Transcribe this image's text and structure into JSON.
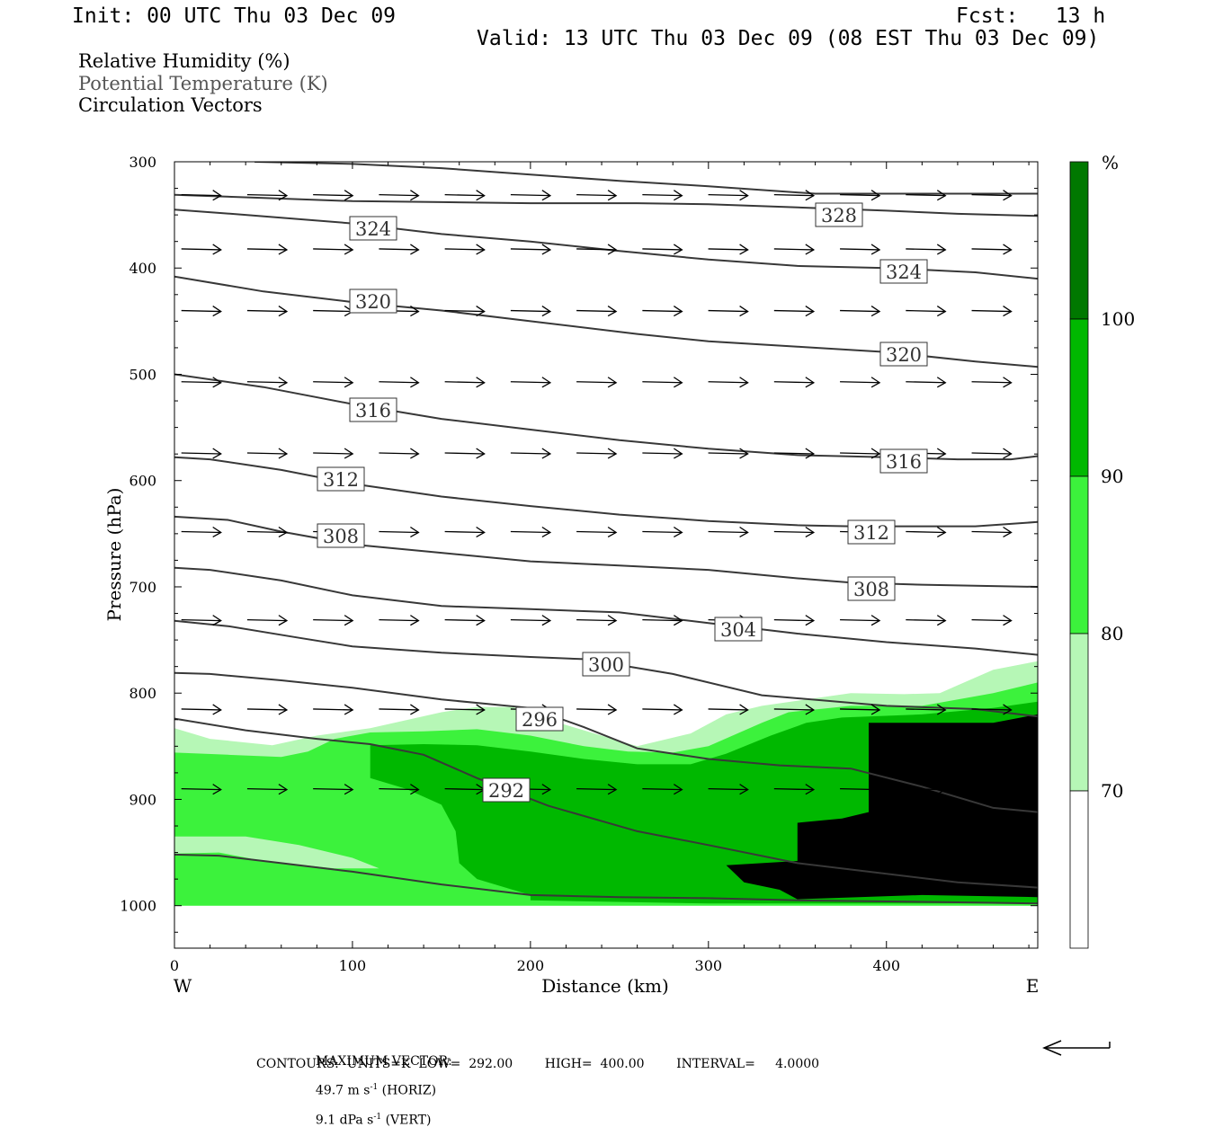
{
  "header": {
    "init": "Init: 00 UTC Thu 03 Dec 09",
    "fcst": "Fcst:   13 h",
    "valid": "Valid: 13 UTC Thu 03 Dec 09 (08 EST Thu 03 Dec 09)"
  },
  "legend": {
    "line1": "Relative Humidity (%)",
    "line2": "Potential Temperature (K)",
    "line3": "Circulation Vectors"
  },
  "footer": {
    "max_vector_label": "MAXIMUM VECTOR:",
    "horiz_value": "49.7 m s",
    "horiz_exp": "-1",
    "horiz_tag": " (HORIZ)",
    "vert_value": "9.1 dPa s",
    "vert_exp": "-1",
    "vert_tag": " (VERT)",
    "contours": "CONTOURS:  UNITS=K  LOW=  292.00        HIGH=  400.00        INTERVAL=     4.0000"
  },
  "colors": {
    "rh_70_80": "#b6f7b6",
    "rh_80_90": "#3cf23c",
    "rh_90_100": "#00b800",
    "rh_100_plus": "#007800",
    "theta_line": "#383838",
    "vector": "#000000"
  },
  "chart_data": {
    "type": "heatmap",
    "title": "",
    "xlabel": "Distance (km)",
    "ylabel": "Pressure (hPa)",
    "xlim": [
      0,
      485
    ],
    "ylim": [
      1040,
      300
    ],
    "y_scale": "linear, inverted",
    "x_ticks": [
      0,
      100,
      200,
      300,
      400
    ],
    "y_ticks": [
      300,
      400,
      500,
      600,
      700,
      800,
      900,
      1000
    ],
    "x_end_labels": {
      "left": "W",
      "right": "E"
    },
    "colorbar": {
      "unit": "%",
      "levels": [
        70,
        80,
        90,
        100
      ],
      "bands": [
        {
          "range": "<70",
          "color": "#ffffff"
        },
        {
          "range": "70-80",
          "color": "#b6f7b6"
        },
        {
          "range": "80-90",
          "color": "#3cf23c"
        },
        {
          "range": "90-100",
          "color": "#00b800"
        },
        {
          "range": ">100",
          "color": "#007800"
        }
      ]
    },
    "rh_regions": [
      {
        "level": "70-80",
        "points": [
          [
            0,
            833
          ],
          [
            20,
            843
          ],
          [
            55,
            849
          ],
          [
            80,
            840
          ],
          [
            110,
            833
          ],
          [
            150,
            818
          ],
          [
            170,
            813
          ],
          [
            190,
            813
          ],
          [
            220,
            830
          ],
          [
            260,
            850
          ],
          [
            290,
            838
          ],
          [
            310,
            820
          ],
          [
            330,
            812
          ],
          [
            380,
            800
          ],
          [
            410,
            801
          ],
          [
            430,
            800
          ],
          [
            460,
            778
          ],
          [
            485,
            770
          ],
          [
            485,
            1000
          ],
          [
            0,
            1000
          ]
        ]
      },
      {
        "level": "80-90",
        "points": [
          [
            0,
            856
          ],
          [
            30,
            858
          ],
          [
            60,
            860
          ],
          [
            75,
            855
          ],
          [
            90,
            843
          ],
          [
            110,
            837
          ],
          [
            140,
            836
          ],
          [
            170,
            834
          ],
          [
            200,
            840
          ],
          [
            230,
            850
          ],
          [
            255,
            855
          ],
          [
            280,
            856
          ],
          [
            300,
            850
          ],
          [
            330,
            828
          ],
          [
            345,
            818
          ],
          [
            380,
            812
          ],
          [
            420,
            812
          ],
          [
            460,
            800
          ],
          [
            485,
            790
          ],
          [
            485,
            1000
          ],
          [
            0,
            1000
          ]
        ]
      },
      {
        "level": "90-100",
        "points": [
          [
            110,
            849
          ],
          [
            140,
            848
          ],
          [
            170,
            849
          ],
          [
            200,
            855
          ],
          [
            230,
            862
          ],
          [
            260,
            867
          ],
          [
            290,
            867
          ],
          [
            310,
            857
          ],
          [
            335,
            840
          ],
          [
            355,
            828
          ],
          [
            375,
            823
          ],
          [
            420,
            820
          ],
          [
            460,
            814
          ],
          [
            485,
            808
          ],
          [
            485,
            998
          ],
          [
            300,
            998
          ],
          [
            200,
            995
          ],
          [
            200,
            990
          ],
          [
            190,
            985
          ],
          [
            170,
            975
          ],
          [
            160,
            960
          ],
          [
            158,
            930
          ],
          [
            150,
            905
          ],
          [
            130,
            890
          ],
          [
            110,
            880
          ]
        ]
      },
      {
        "level": "100+",
        "points": [
          [
            390,
            828
          ],
          [
            460,
            828
          ],
          [
            485,
            820
          ],
          [
            485,
            992
          ],
          [
            420,
            990
          ],
          [
            350,
            994
          ],
          [
            340,
            985
          ],
          [
            320,
            978
          ],
          [
            310,
            962
          ],
          [
            350,
            958
          ],
          [
            350,
            922
          ],
          [
            375,
            918
          ],
          [
            390,
            912
          ],
          [
            390,
            860
          ]
        ]
      },
      {
        "level": "70-80",
        "points": [
          [
            0,
            935
          ],
          [
            40,
            935
          ],
          [
            70,
            943
          ],
          [
            100,
            955
          ],
          [
            115,
            965
          ],
          [
            90,
            965
          ],
          [
            50,
            958
          ],
          [
            25,
            950
          ],
          [
            0,
            951
          ]
        ]
      }
    ],
    "theta_labels": [
      328,
      324,
      324,
      320,
      320,
      316,
      316,
      312,
      312,
      308,
      308,
      304,
      300,
      296,
      292
    ],
    "theta_contours": [
      {
        "value": 328,
        "points": [
          [
            45,
            300
          ],
          [
            100,
            302
          ],
          [
            150,
            306
          ],
          [
            200,
            312
          ],
          [
            250,
            318
          ],
          [
            300,
            323
          ],
          [
            360,
            330
          ],
          [
            420,
            330
          ],
          [
            485,
            330
          ]
        ]
      },
      {
        "value": 328,
        "points": [
          [
            0,
            331
          ],
          [
            50,
            334
          ],
          [
            100,
            337
          ],
          [
            150,
            338
          ],
          [
            200,
            339
          ],
          [
            260,
            339
          ],
          [
            300,
            340
          ],
          [
            350,
            343
          ],
          [
            400,
            346
          ],
          [
            440,
            349
          ],
          [
            485,
            351
          ]
        ]
      },
      {
        "value": 324,
        "points": [
          [
            0,
            345
          ],
          [
            40,
            350
          ],
          [
            100,
            358
          ],
          [
            150,
            368
          ],
          [
            200,
            375
          ],
          [
            250,
            384
          ],
          [
            300,
            392
          ],
          [
            350,
            398
          ],
          [
            400,
            400
          ],
          [
            450,
            404
          ],
          [
            485,
            410
          ]
        ]
      },
      {
        "value": 320,
        "points": [
          [
            0,
            408
          ],
          [
            50,
            422
          ],
          [
            100,
            432
          ],
          [
            150,
            440
          ],
          [
            200,
            450
          ],
          [
            260,
            462
          ],
          [
            300,
            469
          ],
          [
            350,
            474
          ],
          [
            400,
            479
          ],
          [
            450,
            488
          ],
          [
            485,
            493
          ]
        ]
      },
      {
        "value": 316,
        "points": [
          [
            0,
            500
          ],
          [
            50,
            512
          ],
          [
            100,
            528
          ],
          [
            150,
            542
          ],
          [
            200,
            552
          ],
          [
            250,
            562
          ],
          [
            300,
            570
          ],
          [
            350,
            576
          ],
          [
            400,
            578
          ],
          [
            440,
            580
          ],
          [
            470,
            580
          ],
          [
            485,
            577
          ]
        ]
      },
      {
        "value": 312,
        "points": [
          [
            0,
            578
          ],
          [
            20,
            580
          ],
          [
            60,
            590
          ],
          [
            100,
            603
          ],
          [
            150,
            615
          ],
          [
            200,
            624
          ],
          [
            250,
            632
          ],
          [
            300,
            638
          ],
          [
            350,
            642
          ],
          [
            380,
            643
          ],
          [
            450,
            643
          ],
          [
            485,
            639
          ]
        ]
      },
      {
        "value": 308,
        "points": [
          [
            0,
            634
          ],
          [
            30,
            637
          ],
          [
            60,
            648
          ],
          [
            100,
            660
          ],
          [
            150,
            668
          ],
          [
            200,
            676
          ],
          [
            250,
            680
          ],
          [
            300,
            684
          ],
          [
            350,
            692
          ],
          [
            380,
            696
          ],
          [
            420,
            698
          ],
          [
            485,
            700
          ]
        ]
      },
      {
        "value": 304,
        "points": [
          [
            0,
            682
          ],
          [
            20,
            684
          ],
          [
            60,
            694
          ],
          [
            100,
            708
          ],
          [
            150,
            718
          ],
          [
            200,
            721
          ],
          [
            250,
            724
          ],
          [
            300,
            734
          ],
          [
            350,
            744
          ],
          [
            400,
            752
          ],
          [
            450,
            758
          ],
          [
            485,
            764
          ]
        ]
      },
      {
        "value": 300,
        "points": [
          [
            0,
            732
          ],
          [
            30,
            737
          ],
          [
            70,
            748
          ],
          [
            100,
            756
          ],
          [
            150,
            762
          ],
          [
            200,
            766
          ],
          [
            230,
            768
          ],
          [
            280,
            782
          ],
          [
            330,
            802
          ],
          [
            400,
            812
          ],
          [
            450,
            815
          ],
          [
            485,
            822
          ]
        ]
      },
      {
        "value": 296,
        "points": [
          [
            0,
            781
          ],
          [
            20,
            782
          ],
          [
            60,
            788
          ],
          [
            100,
            795
          ],
          [
            150,
            806
          ],
          [
            200,
            814
          ],
          [
            230,
            832
          ],
          [
            260,
            852
          ],
          [
            300,
            862
          ],
          [
            340,
            868
          ],
          [
            380,
            871
          ],
          [
            420,
            888
          ],
          [
            460,
            908
          ],
          [
            485,
            912
          ]
        ]
      },
      {
        "value": 292,
        "points": [
          [
            0,
            824
          ],
          [
            40,
            835
          ],
          [
            80,
            843
          ],
          [
            110,
            848
          ],
          [
            140,
            858
          ],
          [
            170,
            880
          ],
          [
            210,
            906
          ],
          [
            260,
            930
          ],
          [
            300,
            943
          ],
          [
            350,
            960
          ],
          [
            400,
            970
          ],
          [
            440,
            978
          ],
          [
            485,
            983
          ]
        ]
      },
      {
        "value": 292,
        "points": [
          [
            0,
            952
          ],
          [
            25,
            953
          ],
          [
            60,
            960
          ],
          [
            100,
            968
          ],
          [
            150,
            980
          ],
          [
            200,
            990
          ],
          [
            250,
            992
          ],
          [
            300,
            993
          ],
          [
            350,
            995
          ],
          [
            400,
            996
          ],
          [
            450,
            997
          ],
          [
            485,
            998
          ]
        ]
      }
    ],
    "circulation_vectors": {
      "rows_hPa": [
        331,
        382,
        440,
        507,
        574,
        648,
        731,
        815,
        890
      ],
      "x_km": [
        15,
        52,
        89,
        126,
        163,
        200,
        237,
        274,
        311,
        348,
        385,
        422,
        459
      ],
      "max_horiz_m_s": 49.7,
      "max_vert_dPa_s": 9.1
    }
  }
}
